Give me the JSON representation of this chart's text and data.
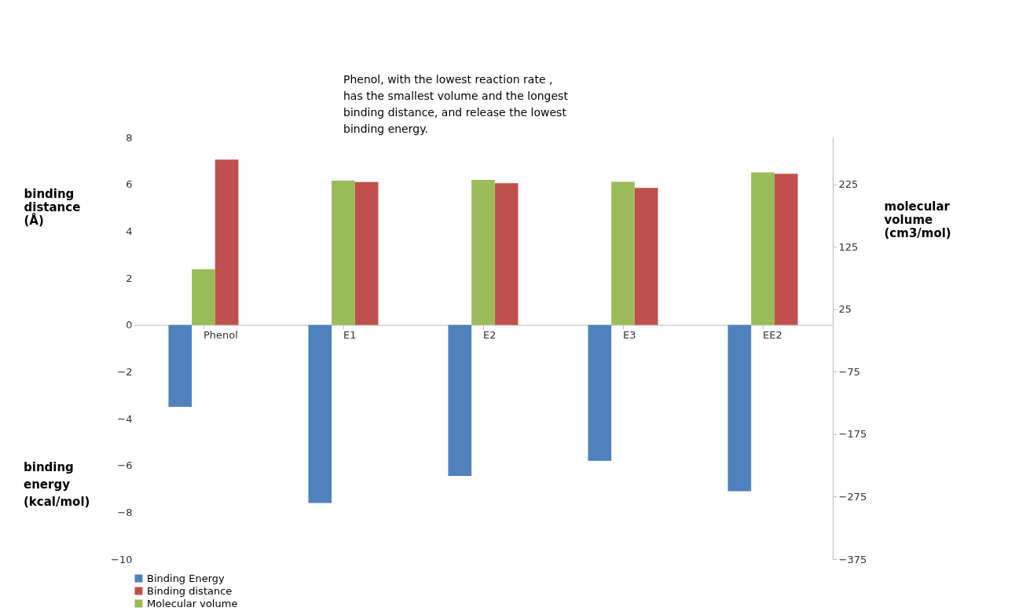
{
  "chart_data": {
    "type": "bar",
    "title": "Phenol, with the lowest reaction rate , has the smallest volume and the longest binding distance, and release the lowest binding energy.",
    "categories": [
      "Phenol",
      "E1",
      "E2",
      "E3",
      "EE2"
    ],
    "series": [
      {
        "name": "Binding Energy",
        "color": "#4f81bd",
        "values": [
          -3.5,
          -7.6,
          -6.45,
          -5.8,
          -7.1
        ]
      },
      {
        "name": "Molecular volume",
        "color": "#9bbb59",
        "axis": "y2",
        "values": [
          89,
          231,
          232,
          229,
          244
        ]
      },
      {
        "name": "Binding distance",
        "color": "#c0504d",
        "values": [
          7.05,
          6.1,
          6.05,
          5.85,
          6.45
        ]
      }
    ],
    "ylabel": "binding distance (Å)",
    "y2label": "molecular volume (cm3/mol)",
    "annotations": [
      "binding energy (kcal/mol)"
    ],
    "ylim": [
      -10,
      8
    ],
    "yticks": [
      -10,
      -8,
      -6,
      -4,
      -2,
      0,
      2,
      4,
      6,
      8
    ],
    "y2lim": [
      -375,
      300
    ],
    "y2ticks": [
      -375,
      -275,
      -175,
      -75,
      25,
      125,
      225
    ],
    "legend": "bottom",
    "grid": false
  }
}
